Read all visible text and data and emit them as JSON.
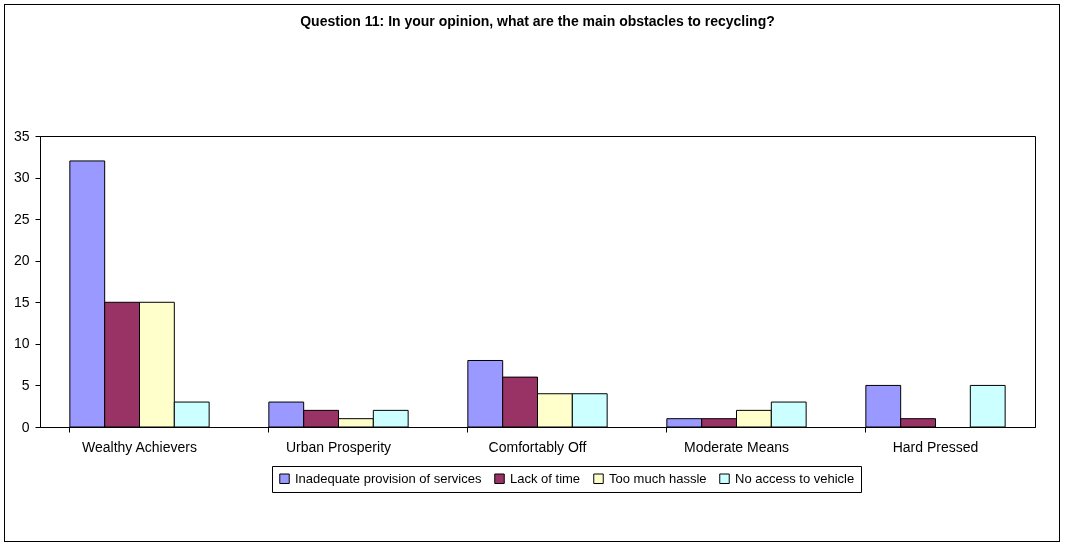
{
  "chart_data": {
    "type": "bar",
    "title": "Question 11: In your opinion, what are the main obstacles to recycling?",
    "categories": [
      "Wealthy Achievers",
      "Urban Prosperity",
      "Comfortably Off",
      "Moderate Means",
      "Hard Pressed"
    ],
    "series": [
      {
        "name": "Inadequate provision of services",
        "color": "#9999ff",
        "values": [
          32,
          3,
          8,
          1,
          5
        ]
      },
      {
        "name": "Lack of time",
        "color": "#993366",
        "values": [
          15,
          2,
          6,
          1,
          1
        ]
      },
      {
        "name": "Too much hassle",
        "color": "#ffffcc",
        "values": [
          15,
          1,
          4,
          2,
          0
        ]
      },
      {
        "name": "No access to vehicle",
        "color": "#ccffff",
        "values": [
          3,
          2,
          4,
          3,
          5
        ]
      }
    ],
    "ylim": [
      0,
      35
    ],
    "yticks": [
      0,
      5,
      10,
      15,
      20,
      25,
      30,
      35
    ],
    "grid": false,
    "legend": "bottom"
  }
}
